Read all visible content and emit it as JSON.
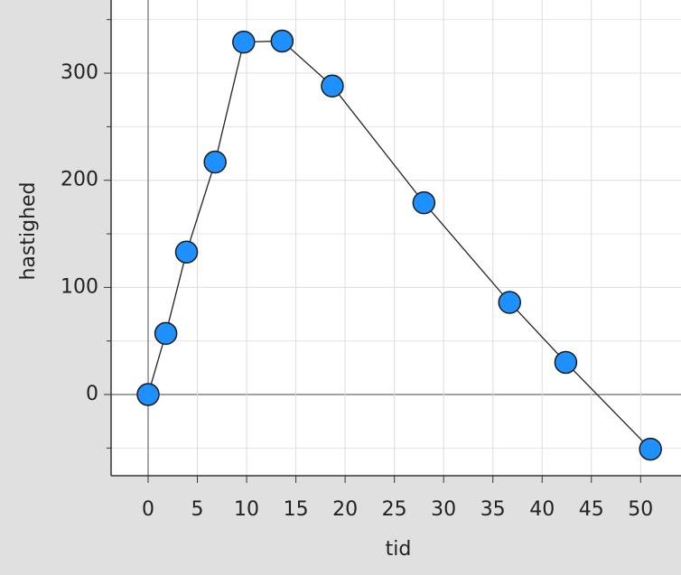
{
  "chart_data": {
    "type": "line",
    "x_label": "tid",
    "y_label": "hastighed",
    "x": [
      0,
      1.8,
      3.9,
      6.8,
      9.7,
      13.6,
      18.7,
      28.0,
      36.7,
      42.4,
      51.0
    ],
    "series": [
      {
        "name": "hastighed",
        "color": "#1e90ff",
        "values": [
          0,
          57,
          133,
          217,
          329,
          330,
          288,
          179,
          86,
          30,
          -51
        ]
      }
    ],
    "xlim": [
      -3.76,
      54.1
    ],
    "ylim": [
      -75.8,
      368.3
    ],
    "xticks": [
      0,
      5,
      10,
      15,
      20,
      25,
      30,
      35,
      40,
      45,
      50
    ],
    "yticks": [
      0,
      100,
      200,
      300
    ],
    "y_minor_ticks": [
      -50,
      50,
      150,
      250,
      350
    ],
    "grid": true
  }
}
